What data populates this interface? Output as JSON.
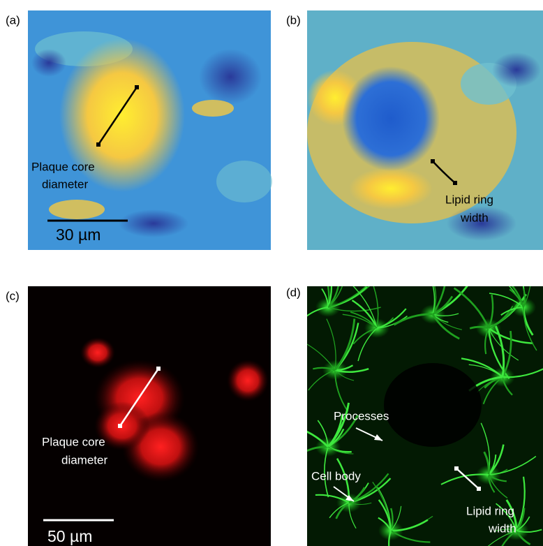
{
  "panels": [
    {
      "label": "(a)",
      "annotations": [
        {
          "lines": [
            "Plaque core",
            "diameter"
          ]
        }
      ],
      "scale_bar": "30 µm"
    },
    {
      "label": "(b)",
      "annotations": [
        {
          "lines": [
            "Lipid ring",
            "width"
          ]
        }
      ]
    },
    {
      "label": "(c)",
      "annotations": [
        {
          "lines": [
            "Plaque core",
            "diameter"
          ]
        }
      ],
      "scale_bar": "50 µm"
    },
    {
      "label": "(d)",
      "annotations": [
        {
          "lines": [
            "Processes"
          ]
        },
        {
          "lines": [
            "Cell body"
          ]
        },
        {
          "lines": [
            "Lipid ring",
            "width"
          ]
        }
      ]
    }
  ]
}
